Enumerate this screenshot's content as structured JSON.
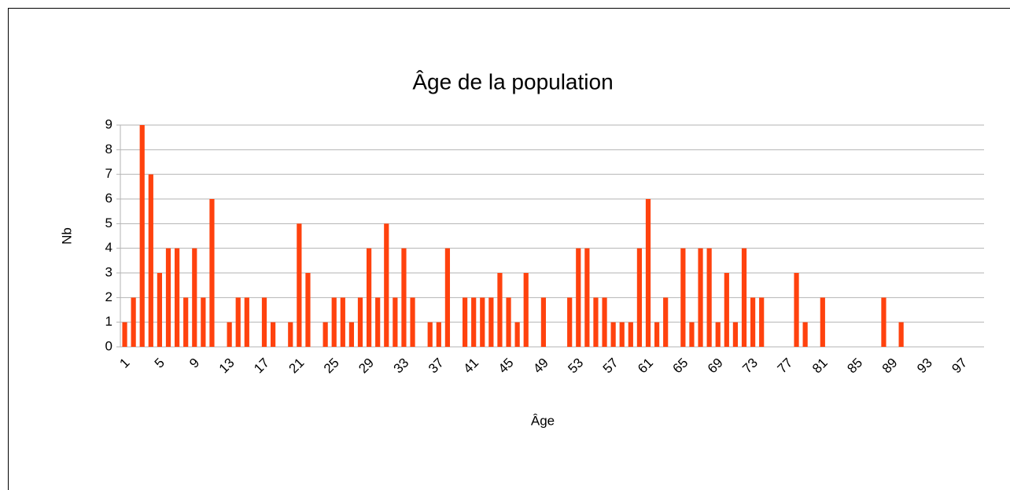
{
  "chart_data": {
    "type": "bar",
    "title": "Âge de la population",
    "x_label": "Âge",
    "y_label": "Nb",
    "categories": [
      1,
      null,
      null,
      null,
      5,
      null,
      null,
      null,
      9,
      null,
      null,
      null,
      13,
      null,
      null,
      null,
      17,
      null,
      null,
      null,
      21,
      null,
      null,
      null,
      25,
      null,
      null,
      null,
      29,
      null,
      null,
      null,
      33,
      null,
      null,
      null,
      37,
      null,
      null,
      null,
      41,
      null,
      null,
      null,
      45,
      null,
      null,
      null,
      49,
      null,
      null,
      null,
      53,
      null,
      null,
      null,
      57,
      null,
      null,
      null,
      61,
      null,
      null,
      null,
      65,
      null,
      null,
      null,
      69,
      null,
      null,
      null,
      73,
      null,
      null,
      null,
      77,
      null,
      null,
      null,
      81,
      null,
      null,
      null,
      85,
      null,
      null,
      null,
      89,
      null,
      null,
      null,
      93,
      null,
      null,
      null,
      97,
      null,
      null
    ],
    "values": [
      1,
      2,
      9,
      7,
      3,
      4,
      4,
      2,
      4,
      2,
      6,
      0,
      1,
      2,
      2,
      0,
      2,
      1,
      0,
      1,
      5,
      3,
      0,
      1,
      2,
      2,
      1,
      2,
      4,
      2,
      5,
      2,
      4,
      2,
      0,
      1,
      1,
      4,
      0,
      2,
      2,
      2,
      2,
      3,
      2,
      1,
      3,
      0,
      2,
      0,
      0,
      2,
      4,
      4,
      2,
      2,
      1,
      1,
      1,
      4,
      6,
      1,
      2,
      0,
      4,
      1,
      4,
      4,
      1,
      3,
      1,
      4,
      2,
      2,
      0,
      0,
      0,
      3,
      1,
      0,
      2,
      0,
      0,
      0,
      0,
      0,
      0,
      2,
      0,
      1,
      0,
      0,
      0,
      0,
      0,
      0,
      0,
      0,
      0
    ],
    "color": "#ff420e",
    "ylim": [
      0,
      9
    ],
    "yticks": [
      0,
      1,
      2,
      3,
      4,
      5,
      6,
      7,
      8,
      9
    ],
    "grid": true
  }
}
